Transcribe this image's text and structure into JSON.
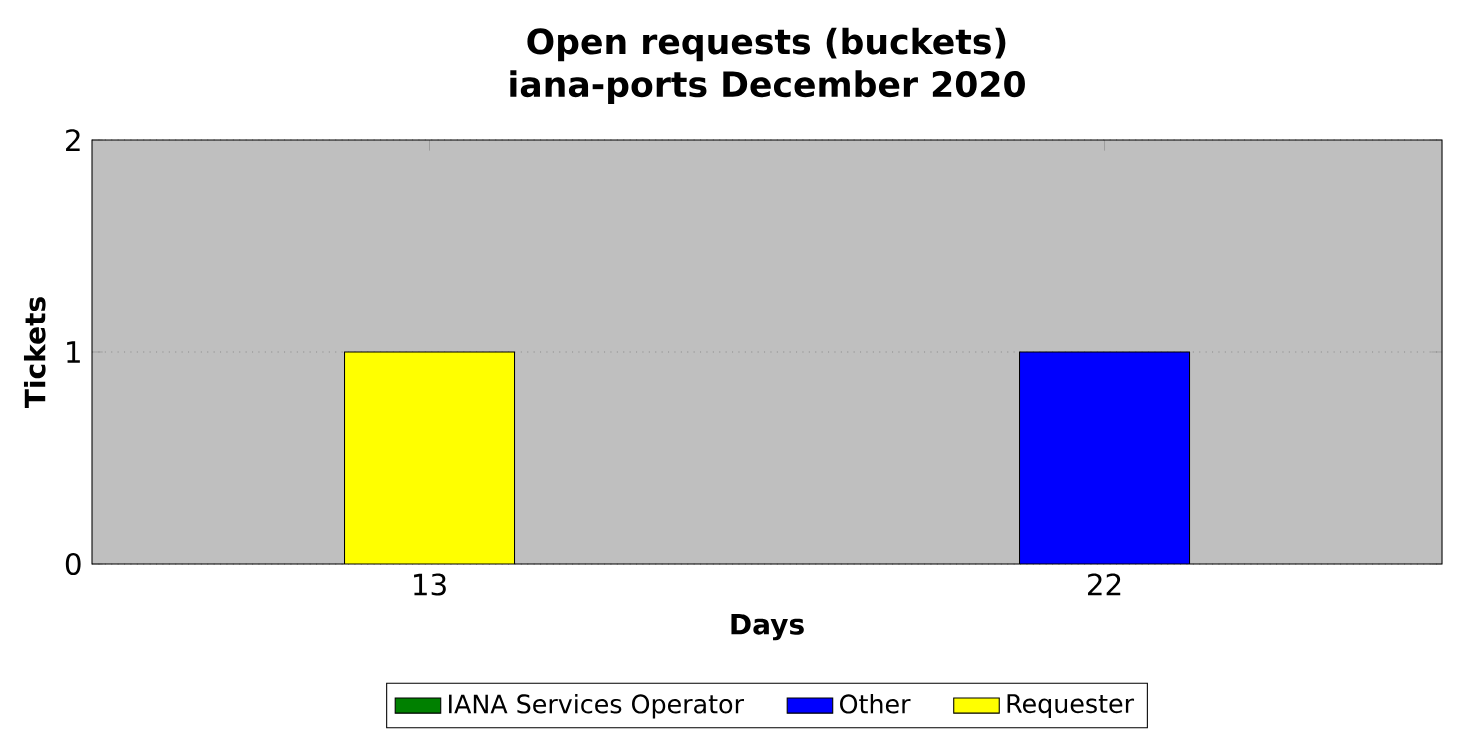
{
  "chart_data": {
    "type": "bar",
    "title": "Open requests (buckets)",
    "subtitle": "iana-ports December 2020",
    "xlabel": "Days",
    "ylabel": "Tickets",
    "categories": [
      "13",
      "22"
    ],
    "stacked": true,
    "series": [
      {
        "name": "IANA Services Operator",
        "color": "#008000",
        "values": [
          0,
          0
        ]
      },
      {
        "name": "Other",
        "color": "#0000ff",
        "values": [
          0,
          1
        ]
      },
      {
        "name": "Requester",
        "color": "#ffff00",
        "values": [
          1,
          0
        ]
      }
    ],
    "ylim": [
      0,
      2
    ],
    "yticks": [
      0,
      1,
      2
    ],
    "grid": "y",
    "legend": "bottom"
  }
}
